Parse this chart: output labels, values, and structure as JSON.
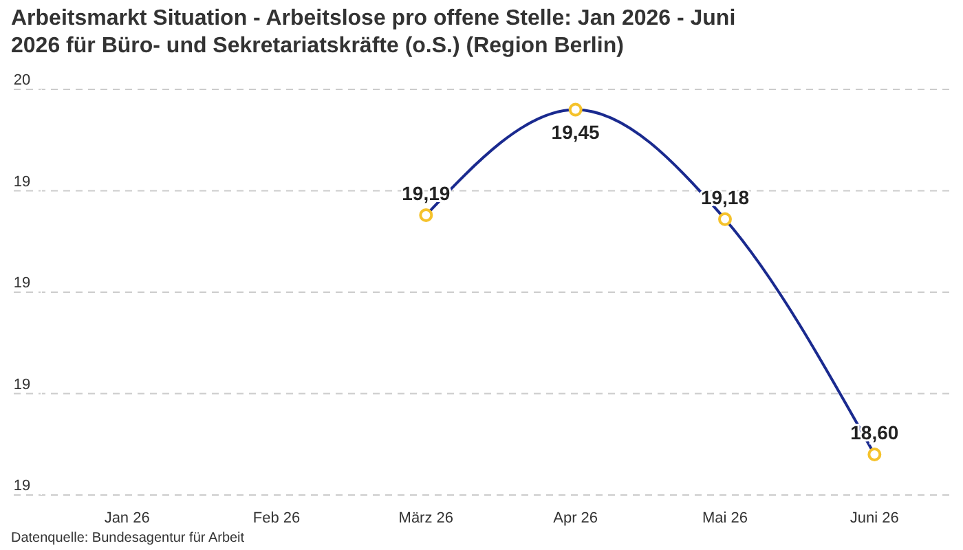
{
  "chart_data": {
    "type": "line",
    "title": "Arbeitsmarkt Situation - Arbeitslose pro offene Stelle: Jan 2026 - Juni 2026 für Büro- und Sekretariatskräfte (o.S.) (Region Berlin)",
    "categories": [
      "Jan 26",
      "Feb 26",
      "März 26",
      "Apr 26",
      "Mai 26",
      "Juni 26"
    ],
    "series": [
      {
        "color": "#1a2a8f",
        "values": [
          null,
          null,
          19.19,
          19.45,
          19.18,
          18.6
        ],
        "value_labels": [
          null,
          null,
          "19,19",
          "19,45",
          "19,18",
          "18,60"
        ]
      }
    ],
    "marker": "circle",
    "ylim": [
      18.5,
      19.5
    ],
    "yticks": [
      {
        "value": 18.5,
        "label": "19"
      },
      {
        "value": 18.75,
        "label": "19"
      },
      {
        "value": 19,
        "label": "19"
      },
      {
        "value": 19.25,
        "label": "19"
      },
      {
        "value": 19.5,
        "label": "20"
      }
    ],
    "grid": "y",
    "annotations": [
      "Datenquelle: Bundesagentur für Arbeit"
    ]
  }
}
